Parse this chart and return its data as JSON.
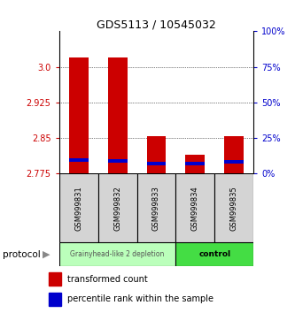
{
  "title": "GDS5113 / 10545032",
  "samples": [
    "GSM999831",
    "GSM999832",
    "GSM999833",
    "GSM999834",
    "GSM999835"
  ],
  "ylim": [
    2.775,
    3.075
  ],
  "yticks_left": [
    2.775,
    2.85,
    2.925,
    3.0
  ],
  "yticks_right_pct": [
    0,
    25,
    50,
    75,
    100
  ],
  "bar_bottom": 2.775,
  "red_tops": [
    3.02,
    3.02,
    2.855,
    2.815,
    2.855
  ],
  "blue_bottoms": [
    2.8,
    2.798,
    2.793,
    2.793,
    2.797
  ],
  "blue_tops": [
    2.807,
    2.806,
    2.8,
    2.8,
    2.804
  ],
  "bar_width": 0.5,
  "red_color": "#CC0000",
  "blue_color": "#0000CC",
  "group1_name": "Grainyhead-like 2 depletion",
  "group2_name": "control",
  "protocol_label": "protocol",
  "legend_red": "transformed count",
  "legend_blue": "percentile rank within the sample",
  "left_tick_color": "#CC0000",
  "right_tick_color": "#0000CC",
  "sample_box_color": "#d4d4d4",
  "group1_box_color": "#bbffbb",
  "group2_box_color": "#44dd44",
  "title_fontsize": 9,
  "tick_fontsize": 7,
  "label_fontsize": 6,
  "legend_fontsize": 7
}
